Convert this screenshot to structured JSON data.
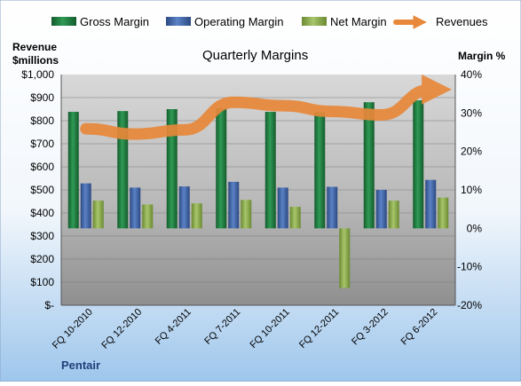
{
  "chart_data": {
    "type": "bar",
    "title": "Quarterly Margins",
    "company": "Pentair",
    "left_axis": {
      "label_line1": "Revenue",
      "label_line2": "$millions",
      "range": [
        0,
        1000
      ],
      "ticks": [
        "$-",
        "$100",
        "$200",
        "$300",
        "$400",
        "$500",
        "$600",
        "$700",
        "$800",
        "$900",
        "$1,000"
      ]
    },
    "right_axis": {
      "label": "Margin %",
      "range": [
        -20,
        40
      ],
      "ticks": [
        "-20%",
        "-10%",
        "0%",
        "10%",
        "20%",
        "30%",
        "40%"
      ]
    },
    "categories": [
      "FQ 10-2010",
      "FQ 12-2010",
      "FQ 4-2011",
      "FQ 7-2011",
      "FQ 10-2011",
      "FQ 12-2011",
      "FQ 3-2012",
      "FQ 6-2012"
    ],
    "series": [
      {
        "name": "Gross Margin",
        "axis": "right",
        "kind": "bar",
        "color": "#1f7a3f",
        "values": [
          30.3,
          30.5,
          31.0,
          31.2,
          30.3,
          30.2,
          32.8,
          33.3
        ]
      },
      {
        "name": "Operating Margin",
        "axis": "right",
        "kind": "bar",
        "color": "#3e64a8",
        "values": [
          11.7,
          10.6,
          10.9,
          12.1,
          10.6,
          10.8,
          10.0,
          12.6
        ]
      },
      {
        "name": "Net Margin",
        "axis": "right",
        "kind": "bar",
        "color": "#8aa84a",
        "values": [
          7.2,
          6.2,
          6.5,
          7.4,
          5.6,
          -15.5,
          7.2,
          8.0
        ]
      },
      {
        "name": "Revenues",
        "axis": "left",
        "kind": "line",
        "color": "#e8883a",
        "values": [
          765,
          742,
          760,
          880,
          865,
          840,
          825,
          935
        ]
      }
    ],
    "legend_position": "top",
    "grid": true
  }
}
